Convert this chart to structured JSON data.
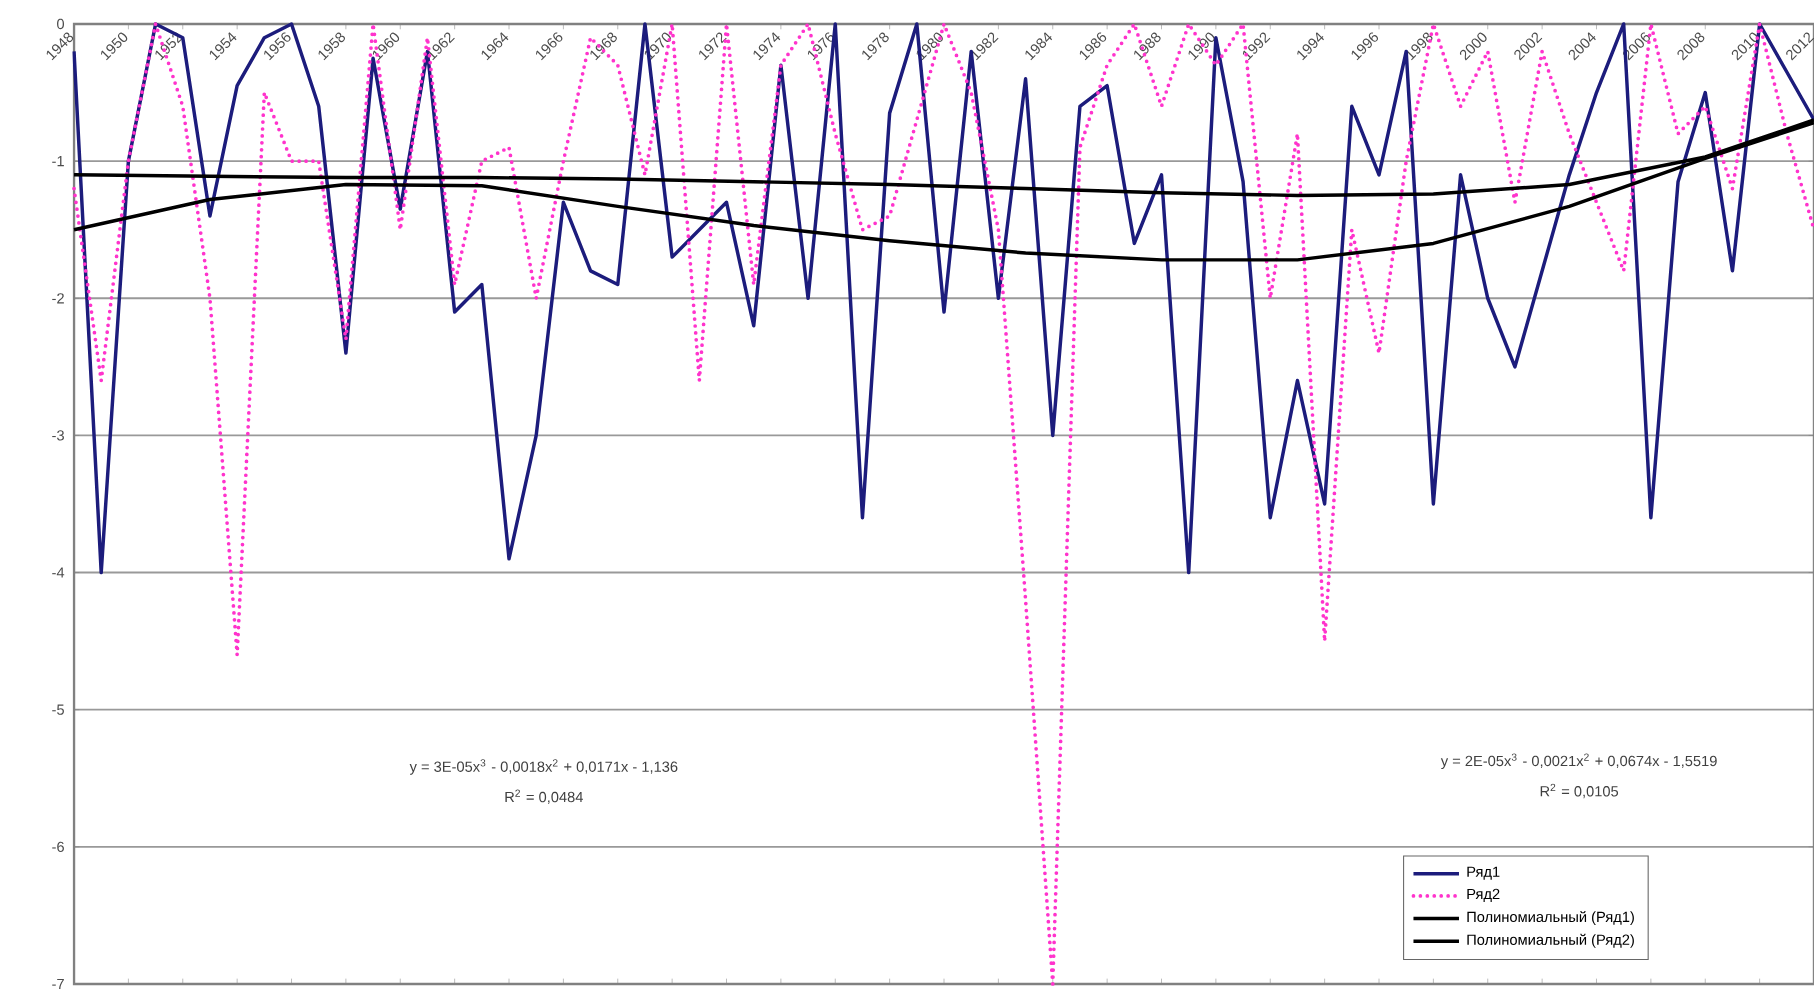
{
  "chart_data": {
    "type": "line",
    "categories": [
      "1948",
      null,
      "1950",
      null,
      "1952",
      null,
      "1954",
      null,
      "1956",
      null,
      "1958",
      null,
      "1960",
      null,
      "1962",
      null,
      "1964",
      null,
      "1966",
      null,
      "1968",
      null,
      "1970",
      null,
      "1972",
      null,
      "1974",
      null,
      "1976",
      null,
      "1978",
      null,
      "1980",
      null,
      "1982",
      null,
      "1984",
      null,
      "1986",
      null,
      "1988",
      null,
      "1990",
      null,
      "1992",
      null,
      "1994",
      null,
      "1996",
      null,
      "1998",
      null,
      "2000",
      null,
      "2002",
      null,
      "2004",
      null,
      "2006",
      null,
      "2008",
      null,
      "2010",
      null,
      "2012"
    ],
    "ylim": [
      -7,
      0
    ],
    "yticks": [
      -7,
      -6,
      -5,
      -4,
      -3,
      -2,
      -1,
      0
    ],
    "grid": "y",
    "legend": "bottom right",
    "marker": "none",
    "annotations": [
      "y = 3E-05x$^{3}$ - 0,0018x$^{2}$ + 0,0171x - 1,136",
      "R$^{2}$ = 0,0484",
      "y = 2E-05x$^{3}$ - 0,0021x$^{2}$ + 0,0674x - 1,5519",
      "R$^{2}$ = 0,0105"
    ],
    "series": [
      {
        "name": "Ряд1",
        "color": "#1c1c7c",
        "line_style": "solid",
        "values": [
          -0.2,
          -4.0,
          -1.0,
          0,
          -0.1,
          -1.4,
          -0.45,
          -0.1,
          0,
          -0.6,
          -2.4,
          -0.25,
          -1.35,
          -0.2,
          -2.1,
          -1.9,
          -3.9,
          -3.0,
          -1.3,
          -1.8,
          -1.9,
          0,
          -1.7,
          -1.5,
          -1.3,
          -2.2,
          -0.3,
          -2.0,
          0,
          -3.6,
          -0.65,
          0,
          -2.1,
          -0.2,
          -2.0,
          -0.4,
          -3.0,
          -0.6,
          -0.45,
          -1.6,
          -1.1,
          -4.0,
          -0.1,
          -1.15,
          -3.6,
          -2.6,
          -3.5,
          -0.6,
          -1.1,
          -0.2,
          -3.5,
          -1.1,
          -2.0,
          -2.5,
          -1.8,
          -1.1,
          -0.5,
          0,
          -3.6,
          -1.15,
          -0.5,
          -1.8,
          0,
          -0.35,
          -0.7
        ]
      },
      {
        "name": "Ряд2",
        "color": "#ff33cc",
        "line_style": "dotted",
        "values": [
          -1.2,
          -2.6,
          -1.0,
          0,
          -0.6,
          -2.0,
          -4.6,
          -0.5,
          -1.0,
          -1.0,
          -2.3,
          0,
          -1.5,
          -0.1,
          -1.9,
          -1.0,
          -0.9,
          -2.0,
          -1.0,
          -0.1,
          -0.3,
          -1.1,
          0,
          -2.6,
          0,
          -1.9,
          -0.3,
          0,
          -0.8,
          -1.5,
          -1.4,
          -0.7,
          0,
          -0.5,
          -1.5,
          -4.2,
          -7.0,
          -0.9,
          -0.3,
          0,
          -0.6,
          0,
          -0.3,
          0,
          -2.0,
          -0.8,
          -4.5,
          -1.5,
          -2.4,
          -1.0,
          0,
          -0.6,
          -0.2,
          -1.3,
          -0.2,
          -0.8,
          -1.3,
          -1.8,
          0,
          -0.8,
          -0.6,
          -1.2,
          0,
          -0.8,
          -1.5
        ]
      },
      {
        "name": "Полиномиальный (Ряд1)",
        "color": "#000000",
        "line_style": "solid",
        "values": [
          -1.5,
          null,
          null,
          null,
          null,
          -1.28,
          null,
          null,
          null,
          null,
          -1.17,
          null,
          null,
          null,
          null,
          -1.18,
          null,
          null,
          null,
          null,
          -1.33,
          null,
          null,
          null,
          null,
          -1.47,
          null,
          null,
          null,
          null,
          -1.58,
          null,
          null,
          null,
          null,
          -1.67,
          null,
          null,
          null,
          null,
          -1.72,
          null,
          null,
          null,
          null,
          -1.72,
          null,
          null,
          null,
          null,
          -1.6,
          null,
          null,
          null,
          null,
          -1.33,
          null,
          null,
          null,
          null,
          -0.98,
          null,
          null,
          null,
          -0.72
        ]
      },
      {
        "name": "Полиномиальный (Ряд2)",
        "color": "#000000",
        "line_style": "solid",
        "values": [
          -1.1,
          null,
          null,
          null,
          null,
          -1.11,
          null,
          null,
          null,
          null,
          -1.12,
          null,
          null,
          null,
          null,
          -1.12,
          null,
          null,
          null,
          null,
          -1.13,
          null,
          null,
          null,
          null,
          -1.15,
          null,
          null,
          null,
          null,
          -1.17,
          null,
          null,
          null,
          null,
          -1.2,
          null,
          null,
          null,
          null,
          -1.23,
          null,
          null,
          null,
          null,
          -1.25,
          null,
          null,
          null,
          null,
          -1.24,
          null,
          null,
          null,
          null,
          -1.17,
          null,
          null,
          null,
          null,
          -0.97,
          null,
          null,
          null,
          -0.7
        ]
      }
    ]
  }
}
